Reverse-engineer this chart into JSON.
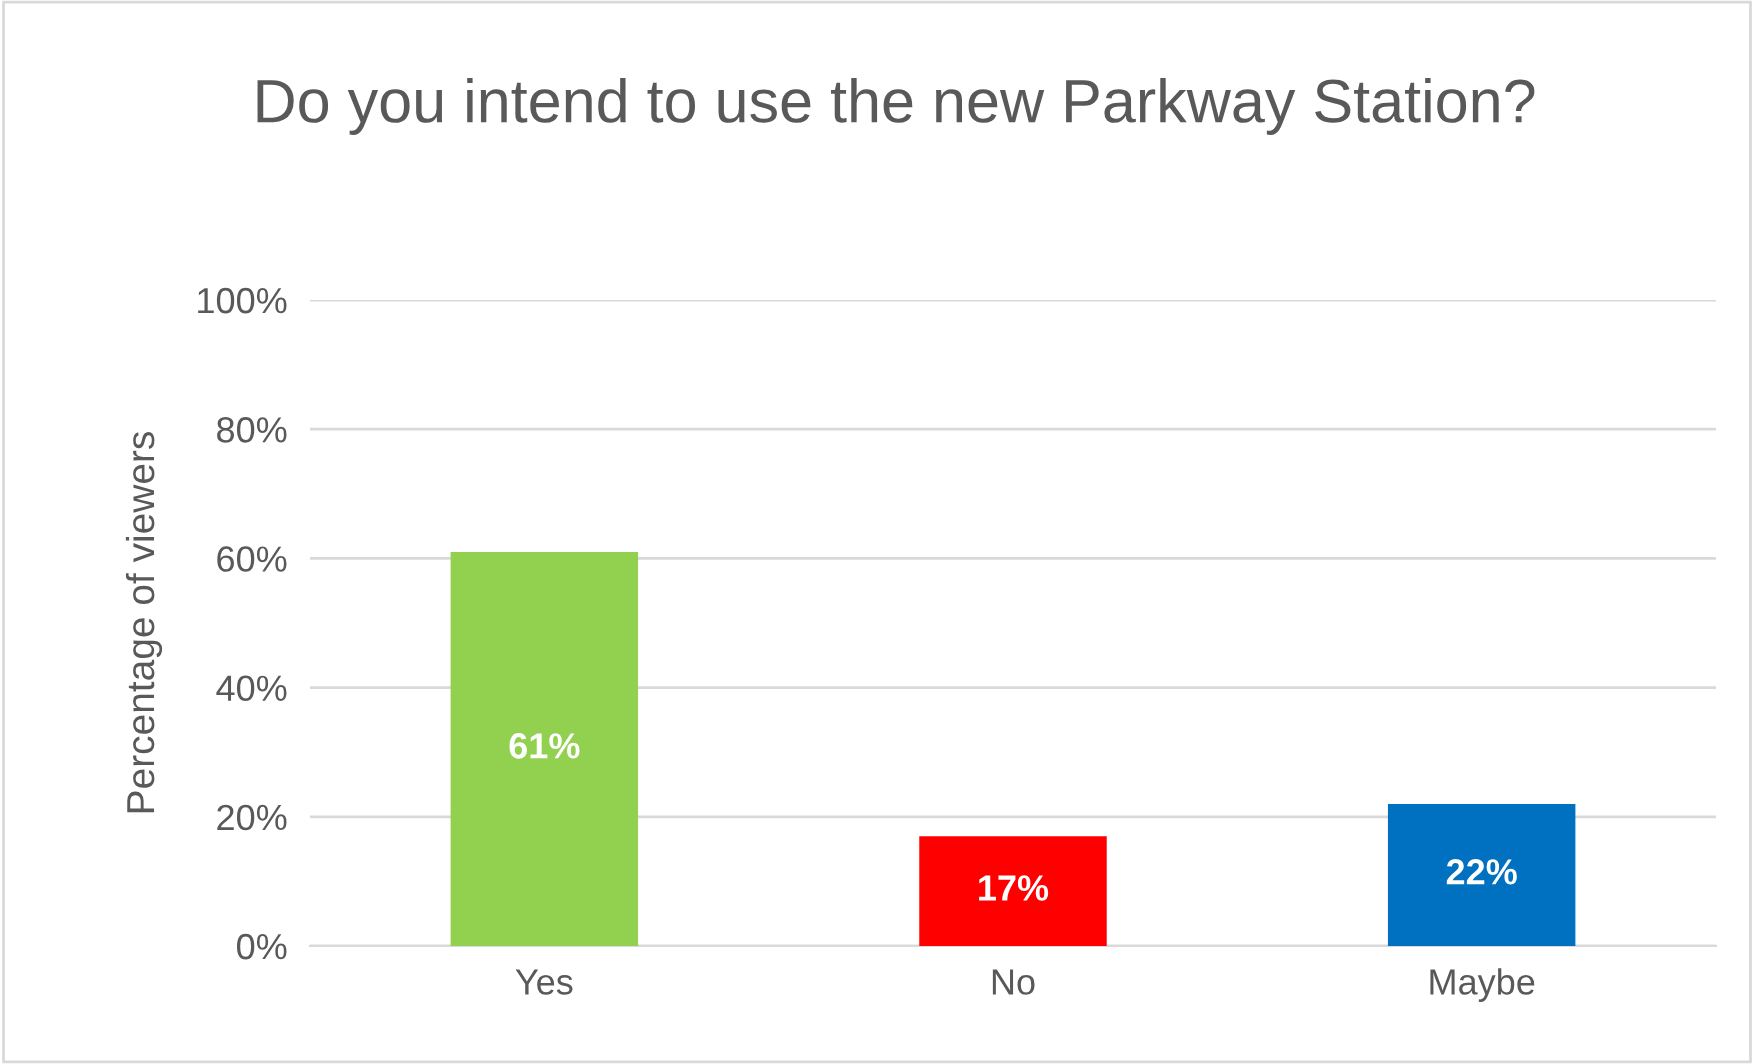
{
  "chart_data": {
    "type": "bar",
    "title": "Do you intend to use the new Parkway Station?",
    "ylabel": "Percentage of viewers",
    "categories": [
      "Yes",
      "No",
      "Maybe"
    ],
    "values": [
      61,
      17,
      22
    ],
    "colors": [
      "#92d050",
      "#ff0000",
      "#0070c0"
    ],
    "value_labels": [
      "61%",
      "17%",
      "22%"
    ],
    "ylim": [
      0,
      100
    ],
    "yticks": [
      {
        "value": 0,
        "label": "0%"
      },
      {
        "value": 20,
        "label": "20%"
      },
      {
        "value": 40,
        "label": "40%"
      },
      {
        "value": 60,
        "label": "60%"
      },
      {
        "value": 80,
        "label": "80%"
      },
      {
        "value": 100,
        "label": "100%"
      }
    ],
    "grid": "y",
    "legend": false
  }
}
